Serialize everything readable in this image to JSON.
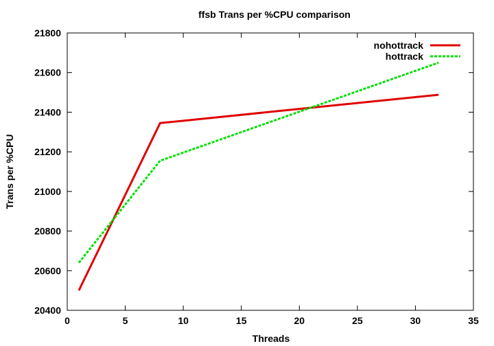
{
  "chart_data": {
    "type": "line",
    "title": "ffsb Trans per %CPU comparison",
    "xlabel": "Threads",
    "ylabel": "Trans per %CPU",
    "xlim": [
      0,
      35
    ],
    "ylim": [
      20400,
      21800
    ],
    "xticks": [
      0,
      5,
      10,
      15,
      20,
      25,
      30,
      35
    ],
    "yticks": [
      20400,
      20600,
      20800,
      21000,
      21200,
      21400,
      21600,
      21800
    ],
    "grid": false,
    "legend_position": "top-right",
    "series": [
      {
        "name": "nohottrack",
        "color": "#e00000",
        "dash": "solid",
        "x": [
          1,
          8,
          32
        ],
        "y": [
          20500,
          21345,
          21488
        ]
      },
      {
        "name": "hottrack",
        "color": "#00e000",
        "dash": "dashed",
        "x": [
          1,
          8,
          32
        ],
        "y": [
          20640,
          21155,
          21650
        ]
      }
    ]
  }
}
